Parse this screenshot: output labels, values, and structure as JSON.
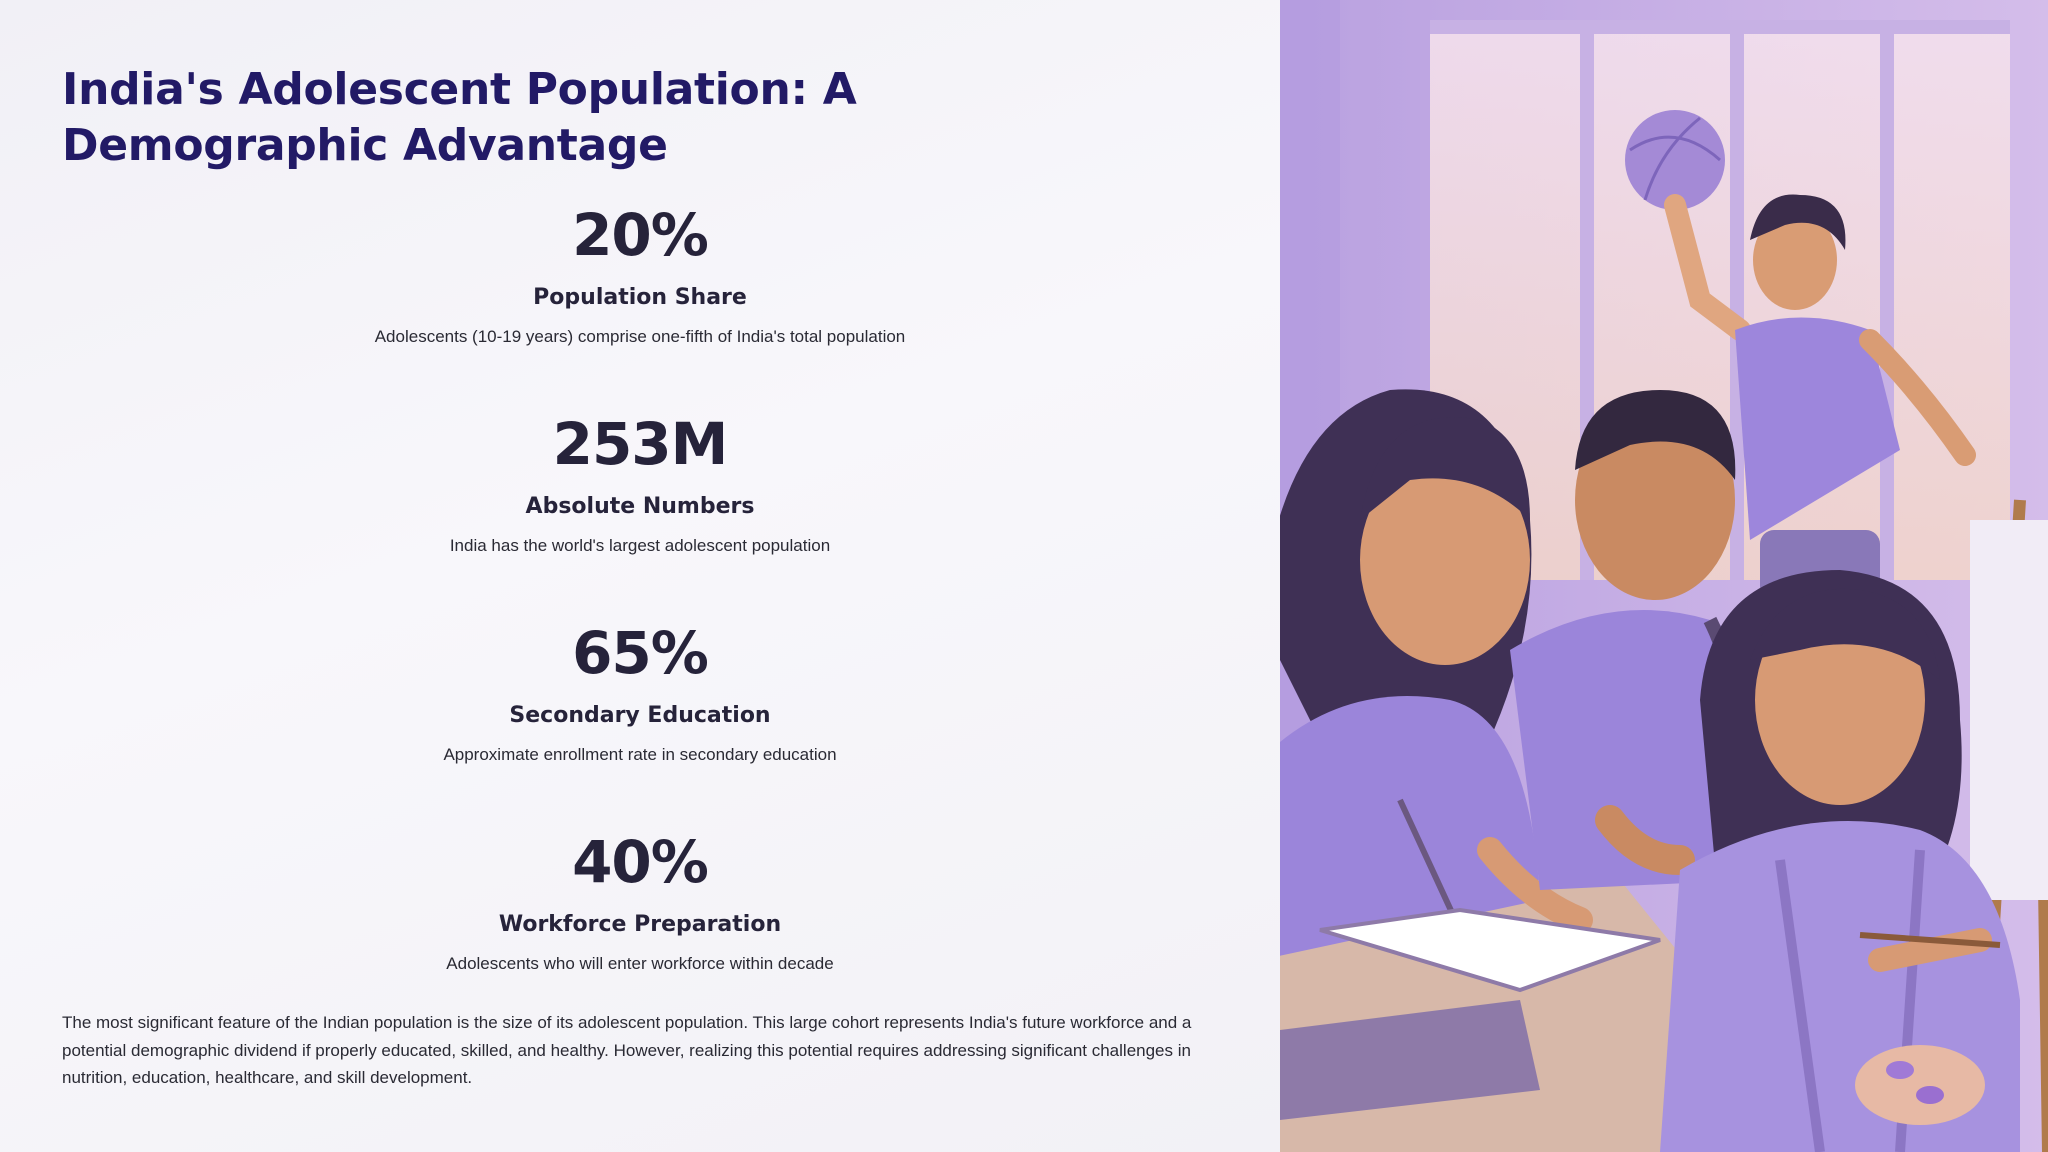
{
  "slide": {
    "title": "India's Adolescent Population: A Demographic Advantage",
    "stats": [
      {
        "value": "20%",
        "label": "Population Share",
        "description": "Adolescents (10-19 years) comprise one-fifth of India's total population"
      },
      {
        "value": "253M",
        "label": "Absolute Numbers",
        "description": "India has the world's largest adolescent population"
      },
      {
        "value": "65%",
        "label": "Secondary Education",
        "description": "Approximate enrollment rate in secondary education"
      },
      {
        "value": "40%",
        "label": "Workforce Preparation",
        "description": "Adolescents who will enter workforce within decade"
      }
    ],
    "summary": "The most significant feature of the Indian population is the size of its adolescent population. This large cohort represents India's future workforce and a potential demographic dividend if properly educated, skilled, and healthy. However, realizing this potential requires addressing significant challenges in nutrition, education, healthcare, and skill development."
  },
  "colors": {
    "title": "#221a66",
    "stat_text": "#26233a",
    "body_text": "#2a2a34",
    "illustration_purple": "#9b86d9"
  },
  "illustration": {
    "subject": "four adolescents studying, painting and playing with a ball"
  }
}
